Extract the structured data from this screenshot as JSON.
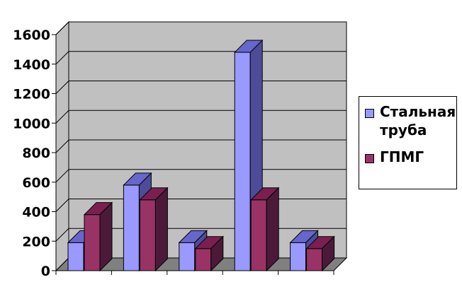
{
  "chart_data": {
    "type": "bar",
    "categories": [
      "",
      "",
      "",
      "",
      ""
    ],
    "series": [
      {
        "name": "Стальная труба",
        "values": [
          190,
          580,
          190,
          1480,
          190
        ],
        "color": "#9999ff"
      },
      {
        "name": "ГПМГ",
        "values": [
          380,
          480,
          150,
          480,
          150
        ],
        "color": "#993366"
      }
    ],
    "ylim": [
      0,
      1600
    ],
    "yticks": [
      "0",
      "200",
      "400",
      "600",
      "800",
      "1000",
      "1200",
      "1400",
      "1600"
    ],
    "grid": true,
    "legend_position": "right",
    "title": "",
    "xlabel": "",
    "ylabel": ""
  },
  "legend": {
    "items": [
      {
        "label": "Стальная труба",
        "color": "#9999ff"
      },
      {
        "label": "ГПМГ",
        "color": "#993366"
      }
    ]
  }
}
